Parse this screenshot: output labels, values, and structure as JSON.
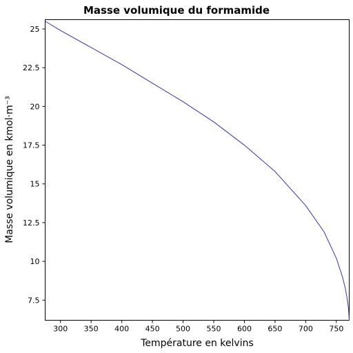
{
  "chart_data": {
    "type": "line",
    "title": "Masse volumique du formamide",
    "xlabel": "Température en kelvins",
    "ylabel": "Masse volumique en kmol·m⁻³",
    "xlim": [
      275,
      771
    ],
    "ylim": [
      6.2,
      25.6
    ],
    "grid": false,
    "x_ticks": [
      300,
      350,
      400,
      450,
      500,
      550,
      600,
      650,
      700,
      750
    ],
    "x_tick_labels": [
      "300",
      "350",
      "400",
      "450",
      "500",
      "550",
      "600",
      "650",
      "700",
      "750"
    ],
    "y_ticks": [
      7.5,
      10,
      12.5,
      15,
      17.5,
      20,
      22.5,
      25
    ],
    "y_tick_labels": [
      "7.5",
      "10",
      "12.5",
      "15",
      "17.5",
      "20",
      "22.5",
      "25"
    ],
    "series": [
      {
        "color": "#3333bb",
        "x": [
          275,
          300,
          350,
          400,
          450,
          500,
          550,
          600,
          650,
          700,
          730,
          750,
          760,
          765,
          768,
          770,
          771
        ],
        "y": [
          25.5,
          24.9,
          23.8,
          22.7,
          21.5,
          20.3,
          19.0,
          17.5,
          15.8,
          13.6,
          11.9,
          10.2,
          9.0,
          8.2,
          7.5,
          6.9,
          6.2
        ]
      }
    ]
  }
}
